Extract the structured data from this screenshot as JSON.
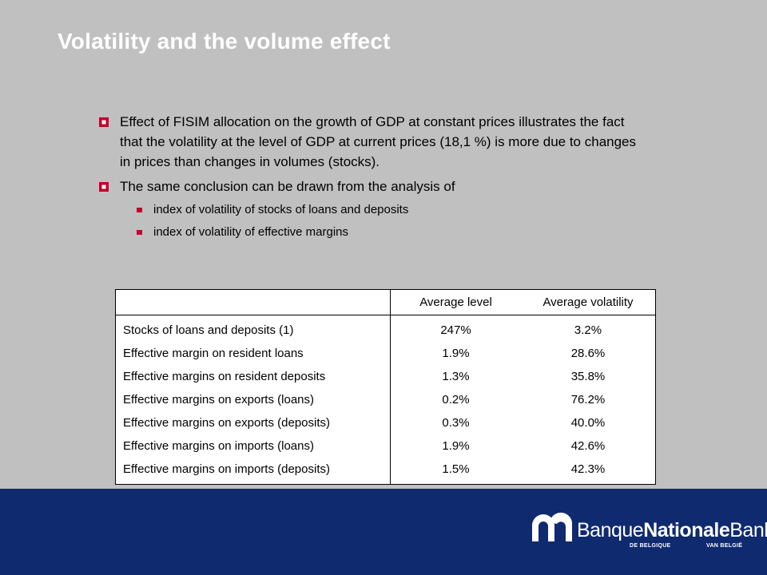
{
  "title": "Volatility and the volume effect",
  "bullets": [
    " Effect of FISIM allocation on the growth of GDP at constant prices illustrates the fact that the volatility at the level of GDP at current prices (18,1 %) is more due to changes in prices than changes in volumes (stocks).",
    "The same conclusion can be drawn from the analysis of"
  ],
  "sub_bullets": [
    "index of volatility of stocks of loans and deposits",
    "index of volatility of effective margins"
  ],
  "table": {
    "headers": [
      "",
      "Average level",
      "Average volatility"
    ],
    "rows": [
      [
        "Stocks of loans and deposits (1)",
        "247%",
        "3.2%"
      ],
      [
        "Effective margin on resident loans",
        "1.9%",
        "28.6%"
      ],
      [
        "Effective margins on resident deposits",
        "1.3%",
        "35.8%"
      ],
      [
        "Effective margins on exports (loans)",
        "0.2%",
        "76.2%"
      ],
      [
        "Effective margins on exports (deposits)",
        "0.3%",
        "40.0%"
      ],
      [
        "Effective margins on imports (loans)",
        "1.9%",
        "42.6%"
      ],
      [
        "Effective margins on imports (deposits)",
        "1.5%",
        "42.3%"
      ]
    ]
  },
  "logo": {
    "word1": "Banque",
    "word2": "Nationale",
    "word3": "Bank",
    "sub_left": "DE BELGIQUE",
    "sub_right": "VAN BELGIË"
  },
  "colors": {
    "background": "#c0c0c0",
    "footer": "#0f2a6e",
    "bullet": "#c2002f"
  }
}
